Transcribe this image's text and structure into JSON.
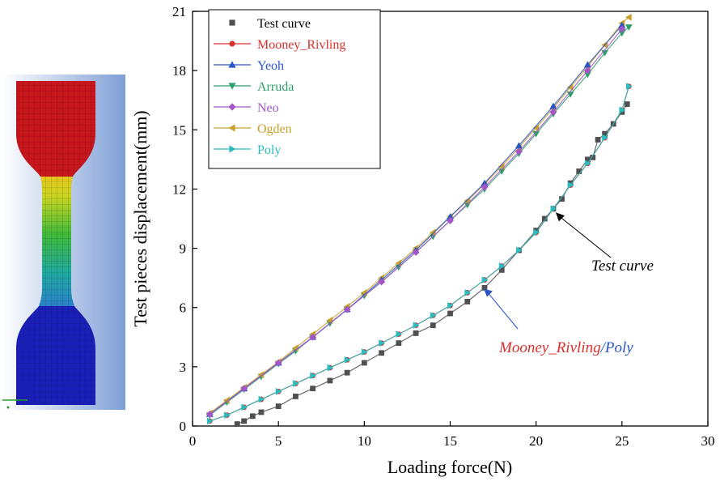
{
  "chart_data": {
    "type": "scatter",
    "xlabel": "Loading force(N)",
    "ylabel": "Test pieces displacement(mm)",
    "xlim": [
      0,
      30
    ],
    "ylim": [
      0,
      21
    ],
    "xticks": [
      0,
      5,
      10,
      15,
      20,
      25,
      30
    ],
    "yticks": [
      0,
      3,
      6,
      9,
      12,
      15,
      18,
      21
    ],
    "grid": false,
    "legend_position": "top-left",
    "series": [
      {
        "name": "Test curve",
        "color": "#505050",
        "marker": "square",
        "x": [
          2.6,
          3.0,
          3.5,
          4.0,
          5.0,
          6.0,
          7.0,
          8.0,
          9.0,
          10.0,
          11.0,
          12.0,
          13.0,
          14.0,
          15.0,
          16.0,
          17.0,
          18.0,
          19.0,
          20.0,
          20.5,
          21.0,
          21.5,
          22.0,
          22.5,
          23.0,
          23.3,
          23.6,
          24.0,
          24.5,
          25.0,
          25.3
        ],
        "y": [
          0.1,
          0.25,
          0.5,
          0.7,
          1.0,
          1.5,
          1.9,
          2.3,
          2.7,
          3.2,
          3.7,
          4.2,
          4.7,
          5.1,
          5.7,
          6.3,
          7.0,
          7.9,
          8.9,
          9.9,
          10.5,
          11.0,
          11.5,
          12.3,
          12.9,
          13.5,
          13.6,
          14.5,
          14.8,
          15.3,
          15.9,
          16.3
        ]
      },
      {
        "name": "Mooney_Rivling",
        "color": "#d9302c",
        "marker": "circle",
        "x": [
          1.0,
          2.0,
          3.0,
          4.0,
          5.0,
          6.0,
          7.0,
          8.0,
          9.0,
          10.0,
          11.0,
          12.0,
          13.0,
          14.0,
          15.0,
          16.0,
          17.0,
          18.0,
          19.0,
          20.0,
          21.0,
          22.0,
          23.0,
          24.0,
          25.0,
          25.4
        ],
        "y": [
          0.25,
          0.55,
          0.95,
          1.35,
          1.75,
          2.15,
          2.55,
          2.95,
          3.35,
          3.75,
          4.2,
          4.65,
          5.1,
          5.6,
          6.1,
          6.75,
          7.4,
          8.1,
          8.9,
          9.8,
          11.0,
          12.2,
          13.3,
          14.6,
          16.0,
          17.2
        ]
      },
      {
        "name": "Yeoh",
        "color": "#2a55c8",
        "marker": "triangle-up",
        "x": [
          1.0,
          3.0,
          5.0,
          7.0,
          9.0,
          11.0,
          13.0,
          15.0,
          17.0,
          19.0,
          21.0,
          23.0,
          25.0
        ],
        "y": [
          0.6,
          1.9,
          3.2,
          4.5,
          5.9,
          7.4,
          8.9,
          10.6,
          12.3,
          14.2,
          16.2,
          18.3,
          20.3
        ]
      },
      {
        "name": "Arruda",
        "color": "#2e9e6a",
        "marker": "triangle-down",
        "x": [
          1.0,
          2.0,
          3.0,
          4.0,
          5.0,
          6.0,
          7.0,
          8.0,
          9.0,
          10.0,
          11.0,
          12.0,
          13.0,
          14.0,
          15.0,
          16.0,
          17.0,
          18.0,
          19.0,
          20.0,
          21.0,
          22.0,
          23.0,
          24.0,
          25.0,
          25.4
        ],
        "y": [
          0.55,
          1.2,
          1.85,
          2.5,
          3.15,
          3.8,
          4.5,
          5.2,
          5.9,
          6.6,
          7.3,
          8.05,
          8.8,
          9.6,
          10.4,
          11.2,
          12.0,
          12.9,
          13.8,
          14.8,
          15.8,
          16.8,
          17.8,
          18.9,
          19.9,
          20.2
        ]
      },
      {
        "name": "Neo",
        "color": "#a456c8",
        "marker": "diamond",
        "x": [
          1.0,
          3.0,
          5.0,
          7.0,
          9.0,
          11.0,
          13.0,
          15.0,
          17.0,
          19.0,
          21.0,
          23.0,
          25.0
        ],
        "y": [
          0.6,
          1.9,
          3.2,
          4.5,
          5.9,
          7.3,
          8.8,
          10.4,
          12.1,
          13.9,
          15.9,
          18.0,
          20.1
        ]
      },
      {
        "name": "Ogden",
        "color": "#c9a02e",
        "marker": "triangle-left",
        "x": [
          1.0,
          2.0,
          3.0,
          4.0,
          5.0,
          6.0,
          7.0,
          8.0,
          9.0,
          10.0,
          11.0,
          12.0,
          13.0,
          14.0,
          15.0,
          16.0,
          17.0,
          18.0,
          19.0,
          20.0,
          21.0,
          22.0,
          23.0,
          24.0,
          25.0,
          25.4
        ],
        "y": [
          0.65,
          1.3,
          1.95,
          2.6,
          3.25,
          3.95,
          4.65,
          5.35,
          6.05,
          6.75,
          7.5,
          8.25,
          9.0,
          9.8,
          10.6,
          11.4,
          12.25,
          13.15,
          14.1,
          15.1,
          16.1,
          17.15,
          18.2,
          19.3,
          20.4,
          20.7
        ]
      },
      {
        "name": "Poly",
        "color": "#2bbcc0",
        "marker": "triangle-right",
        "x": [
          1.0,
          2.0,
          3.0,
          4.0,
          5.0,
          6.0,
          7.0,
          8.0,
          9.0,
          10.0,
          11.0,
          12.0,
          13.0,
          14.0,
          15.0,
          16.0,
          17.0,
          18.0,
          19.0,
          20.0,
          21.0,
          22.0,
          23.0,
          24.0,
          25.0,
          25.4
        ],
        "y": [
          0.25,
          0.55,
          0.95,
          1.35,
          1.75,
          2.15,
          2.55,
          2.95,
          3.35,
          3.75,
          4.2,
          4.65,
          5.1,
          5.6,
          6.1,
          6.75,
          7.4,
          8.1,
          8.9,
          9.8,
          11.0,
          12.2,
          13.3,
          14.6,
          16.0,
          17.2
        ]
      }
    ],
    "annotations": [
      {
        "text": "Test curve",
        "color": "#000000",
        "target": [
          21.0,
          10.9
        ]
      },
      {
        "parts": [
          {
            "text": "Mooney_Rivling",
            "color": "#d9302c"
          },
          {
            "text": "/",
            "color": "#2a55c8"
          },
          {
            "text": "Poly",
            "color": "#2a55c8"
          }
        ],
        "target": [
          17.0,
          7.2
        ]
      }
    ]
  },
  "colors": {
    "mesh_red": "#c8161d",
    "mesh_blue": "#1a1fb8",
    "mesh_background": "#8ea7d6"
  }
}
